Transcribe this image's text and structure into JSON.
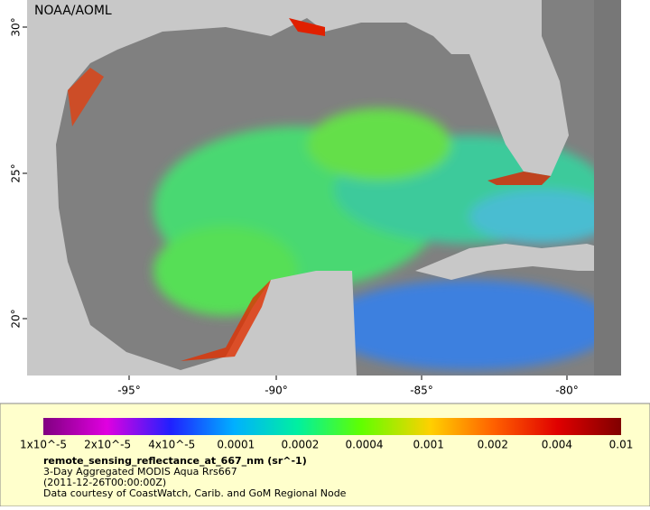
{
  "map": {
    "credit": "NOAA/AOML",
    "lat_labels": [
      "30°",
      "25°",
      "20°"
    ],
    "lon_labels": [
      "-95°",
      "-90°",
      "-85°",
      "-80°"
    ]
  },
  "legend": {
    "scale_labels": [
      "1x10^-5",
      "2x10^-5",
      "4x10^-5",
      "0.0001",
      "0.0002",
      "0.0004",
      "0.001",
      "0.002",
      "0.004",
      "0.01"
    ],
    "variable": "remote_sensing_reflectance_at_667_nm (sr^-1)",
    "lines": [
      "3-Day Aggregated MODIS Aqua Rrs667",
      "(2011-12-26T00:00:00Z)",
      "Data courtesy of CoastWatch, Carib. and GoM Regional Node"
    ]
  }
}
